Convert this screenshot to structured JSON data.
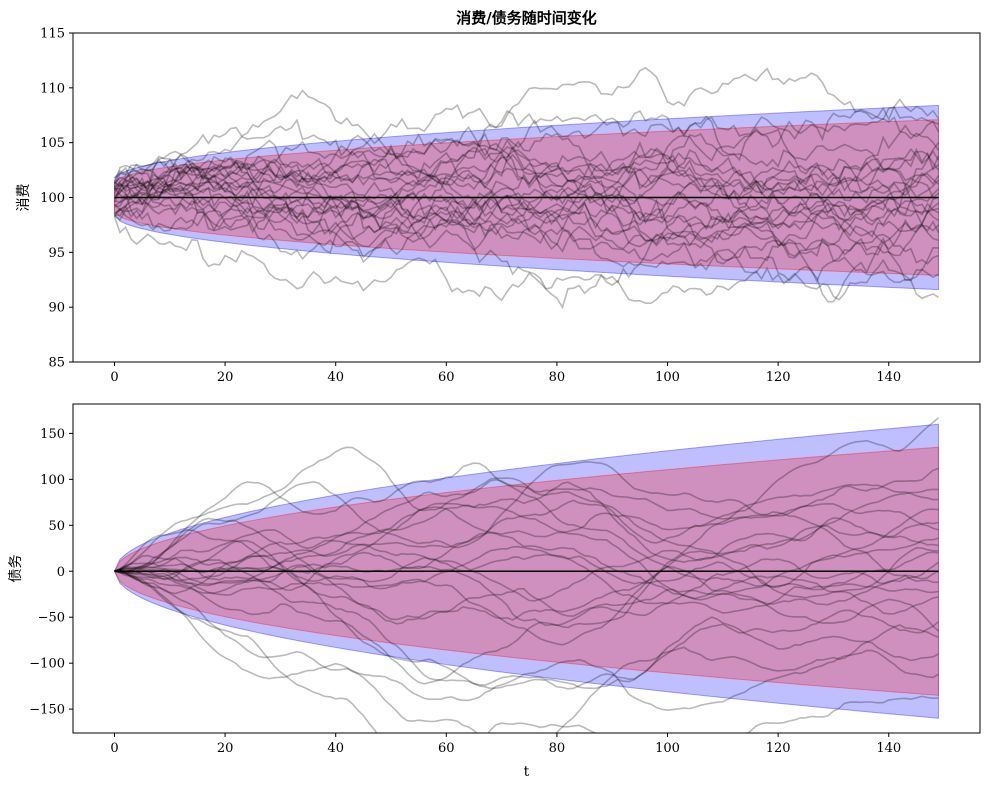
{
  "chart_data": [
    {
      "type": "line",
      "title": "消费/债务随时间变化",
      "xlabel": "",
      "ylabel": "消费",
      "xlim": [
        -7.5,
        156.5
      ],
      "ylim": [
        85,
        115
      ],
      "xticks": [
        0,
        20,
        40,
        60,
        80,
        100,
        120,
        140
      ],
      "yticks": [
        85,
        90,
        95,
        100,
        105,
        110,
        115
      ],
      "grid": false,
      "bands": [
        {
          "name": "outer",
          "color": "#0000ff",
          "alpha": 0.25,
          "center": 100,
          "halfwidth_start": 1.6,
          "halfwidth_end": 8.4
        },
        {
          "name": "inner",
          "color": "#ff0000",
          "alpha": 0.25,
          "center": 100,
          "halfwidth_start": 1.3,
          "halfwidth_end": 7.1
        }
      ],
      "mean": {
        "color": "#000000",
        "value": 100,
        "x_end": 149
      },
      "paths": {
        "count": 26,
        "color": "#000000",
        "alpha": 0.27,
        "start_spread": 1.8,
        "end_values": [
          90.9,
          93.0,
          94.7,
          95.4,
          96.1,
          96.8,
          97.5,
          97.9,
          98.6,
          99.0,
          99.5,
          100.0,
          100.4,
          100.8,
          101.2,
          101.6,
          102.0,
          102.5,
          103.0,
          103.4,
          103.8,
          104.3,
          105.0,
          106.0,
          106.7,
          107.2
        ]
      }
    },
    {
      "type": "line",
      "title": "",
      "xlabel": "t",
      "ylabel": "债务",
      "xlim": [
        -7.5,
        156.5
      ],
      "ylim": [
        -176,
        182
      ],
      "xticks": [
        0,
        20,
        40,
        60,
        80,
        100,
        120,
        140
      ],
      "yticks": [
        -150,
        -100,
        -50,
        0,
        50,
        100,
        150
      ],
      "yticklabels": [
        "−150",
        "−100",
        "−50",
        "0",
        "50",
        "100",
        "150"
      ],
      "grid": false,
      "bands": [
        {
          "name": "outer",
          "color": "#0000ff",
          "alpha": 0.25,
          "center": 0,
          "halfwidth_end": 160
        },
        {
          "name": "inner",
          "color": "#ff0000",
          "alpha": 0.25,
          "center": 0,
          "halfwidth_end": 135
        }
      ],
      "mean": {
        "color": "#000000",
        "value": 0,
        "x_end": 149
      },
      "paths": {
        "count": 22,
        "color": "#000000",
        "alpha": 0.27,
        "end_values": [
          167,
          112,
          89,
          78,
          67,
          53,
          45,
          36,
          28,
          22,
          20,
          10,
          0,
          -12,
          -22,
          -28,
          -55,
          -65,
          -72,
          -90,
          -112,
          -138
        ]
      }
    }
  ]
}
